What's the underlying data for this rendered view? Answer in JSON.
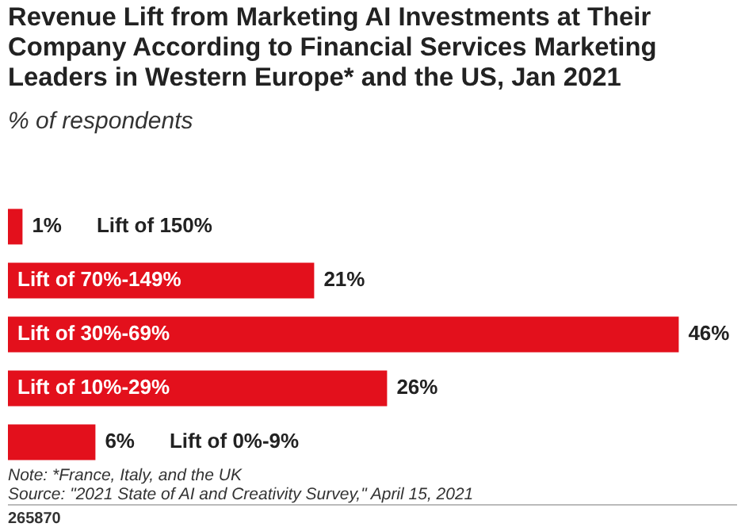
{
  "chart_data": {
    "type": "bar",
    "orientation": "horizontal",
    "title": "Revenue Lift from Marketing AI Investments at Their Company According to Financial Services Marketing Leaders in Western Europe* and the US, Jan 2021",
    "subtitle": "% of respondents",
    "categories": [
      "Lift of 150%",
      "Lift of 70%-149%",
      "Lift of 30%-69%",
      "Lift of 10%-29%",
      "Lift of 0%-9%"
    ],
    "values": [
      1,
      21,
      46,
      26,
      6
    ],
    "value_labels": [
      "1%",
      "21%",
      "46%",
      "26%",
      "6%"
    ],
    "color": "#e3101c",
    "annotations": [
      "Note: *France, Italy, and the UK",
      "Source: \"2021 State of AI and Creativity Survey,\" April 15, 2021",
      "265870"
    ]
  }
}
